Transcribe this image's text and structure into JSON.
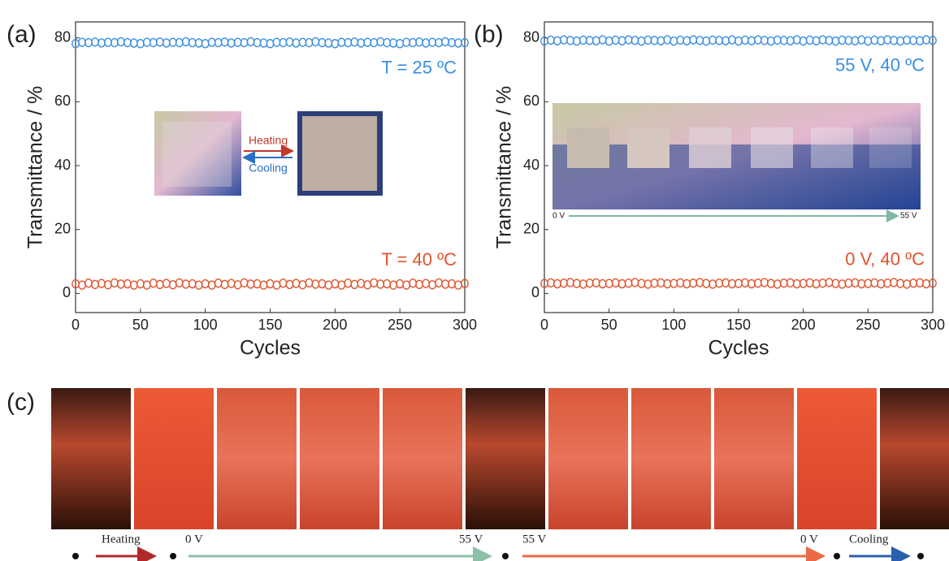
{
  "panel_labels": [
    "(a)",
    "(b)",
    "(c)"
  ],
  "chart_data": [
    {
      "type": "scatter",
      "xlabel": "Cycles",
      "ylabel": "Transmittance / %",
      "xlim": [
        0,
        300
      ],
      "ylim": [
        -6,
        85
      ],
      "xticks": [
        0,
        50,
        100,
        150,
        200,
        250,
        300
      ],
      "yticks": [
        0,
        20,
        40,
        60,
        80
      ],
      "inset_labels": [
        "Heating",
        "Cooling"
      ],
      "x": [
        0,
        5,
        10,
        15,
        20,
        25,
        30,
        35,
        40,
        45,
        50,
        55,
        60,
        65,
        70,
        75,
        80,
        85,
        90,
        95,
        100,
        105,
        110,
        115,
        120,
        125,
        130,
        135,
        140,
        145,
        150,
        155,
        160,
        165,
        170,
        175,
        180,
        185,
        190,
        195,
        200,
        205,
        210,
        215,
        220,
        225,
        230,
        235,
        240,
        245,
        250,
        255,
        260,
        265,
        270,
        275,
        280,
        285,
        290,
        295,
        300
      ],
      "series": [
        {
          "name": "T = 25 ºC",
          "color": "#3a8ee0",
          "values": [
            78.2,
            78.6,
            78.5,
            78.7,
            78.4,
            78.6,
            78.5,
            78.8,
            78.5,
            78.4,
            78.2,
            78.6,
            78.5,
            78.7,
            78.4,
            78.6,
            78.5,
            78.8,
            78.5,
            78.4,
            78.2,
            78.6,
            78.5,
            78.7,
            78.4,
            78.6,
            78.5,
            78.8,
            78.5,
            78.4,
            78.2,
            78.6,
            78.5,
            78.7,
            78.4,
            78.6,
            78.5,
            78.8,
            78.5,
            78.4,
            78.2,
            78.6,
            78.5,
            78.7,
            78.4,
            78.6,
            78.5,
            78.8,
            78.5,
            78.4,
            78.2,
            78.6,
            78.5,
            78.7,
            78.4,
            78.6,
            78.5,
            78.8,
            78.5,
            78.4,
            78.5
          ]
        },
        {
          "name": "T = 40 ºC",
          "color": "#e0532d",
          "values": [
            3.0,
            2.6,
            3.2,
            2.8,
            3.1,
            2.7,
            3.3,
            2.9,
            3.0,
            2.6,
            3.0,
            2.6,
            3.2,
            2.8,
            3.1,
            2.7,
            3.3,
            2.9,
            3.0,
            2.6,
            3.0,
            2.6,
            3.2,
            2.8,
            3.1,
            2.7,
            3.3,
            2.9,
            3.0,
            2.6,
            3.0,
            2.6,
            3.2,
            2.8,
            3.1,
            2.7,
            3.3,
            2.9,
            3.0,
            2.6,
            3.0,
            2.6,
            3.2,
            2.8,
            3.1,
            2.7,
            3.3,
            2.9,
            3.0,
            2.6,
            3.0,
            2.6,
            3.2,
            2.8,
            3.1,
            2.7,
            3.3,
            2.9,
            3.0,
            2.6,
            3.1
          ]
        }
      ]
    },
    {
      "type": "scatter",
      "xlabel": "Cycles",
      "ylabel": "Transmittance / %",
      "xlim": [
        0,
        300
      ],
      "ylim": [
        -6,
        85
      ],
      "xticks": [
        0,
        50,
        100,
        150,
        200,
        250,
        300
      ],
      "yticks": [
        0,
        20,
        40,
        60,
        80
      ],
      "inset_labels": [
        "0 V",
        "55 V"
      ],
      "x": [
        0,
        5,
        10,
        15,
        20,
        25,
        30,
        35,
        40,
        45,
        50,
        55,
        60,
        65,
        70,
        75,
        80,
        85,
        90,
        95,
        100,
        105,
        110,
        115,
        120,
        125,
        130,
        135,
        140,
        145,
        150,
        155,
        160,
        165,
        170,
        175,
        180,
        185,
        190,
        195,
        200,
        205,
        210,
        215,
        220,
        225,
        230,
        235,
        240,
        245,
        250,
        255,
        260,
        265,
        270,
        275,
        280,
        285,
        290,
        295,
        300
      ],
      "series": [
        {
          "name": "55 V, 40 ºC",
          "color": "#3a8ee0",
          "values": [
            79.0,
            79.3,
            79.1,
            79.4,
            79.2,
            79.0,
            79.3,
            79.2,
            79.1,
            79.4,
            79.0,
            79.3,
            79.1,
            79.4,
            79.2,
            79.0,
            79.3,
            79.2,
            79.1,
            79.4,
            79.0,
            79.3,
            79.1,
            79.4,
            79.2,
            79.0,
            79.3,
            79.2,
            79.1,
            79.4,
            79.0,
            79.3,
            79.1,
            79.4,
            79.2,
            79.0,
            79.3,
            79.2,
            79.1,
            79.4,
            79.0,
            79.3,
            79.1,
            79.4,
            79.2,
            79.0,
            79.3,
            79.2,
            79.1,
            79.4,
            79.0,
            79.3,
            79.1,
            79.4,
            79.2,
            79.0,
            79.3,
            79.2,
            79.1,
            79.4,
            79.2
          ]
        },
        {
          "name": "0 V, 40 ºC",
          "color": "#e0532d",
          "values": [
            3.1,
            3.3,
            3.0,
            3.2,
            3.4,
            3.1,
            2.9,
            3.2,
            3.3,
            3.0,
            3.1,
            3.3,
            3.0,
            3.2,
            3.4,
            3.1,
            2.9,
            3.2,
            3.3,
            3.0,
            3.1,
            3.3,
            3.0,
            3.2,
            3.4,
            3.1,
            2.9,
            3.2,
            3.3,
            3.0,
            3.1,
            3.3,
            3.0,
            3.2,
            3.4,
            3.1,
            2.9,
            3.2,
            3.3,
            3.0,
            3.1,
            3.3,
            3.0,
            3.2,
            3.4,
            3.1,
            2.9,
            3.2,
            3.3,
            3.0,
            3.1,
            3.3,
            3.0,
            3.2,
            3.4,
            3.1,
            2.9,
            3.2,
            3.3,
            3.0,
            3.2
          ]
        }
      ]
    }
  ],
  "strip": {
    "labels": [
      "Heating",
      "0 V",
      "55 V",
      "55 V",
      "0 V",
      "Cooling"
    ]
  }
}
